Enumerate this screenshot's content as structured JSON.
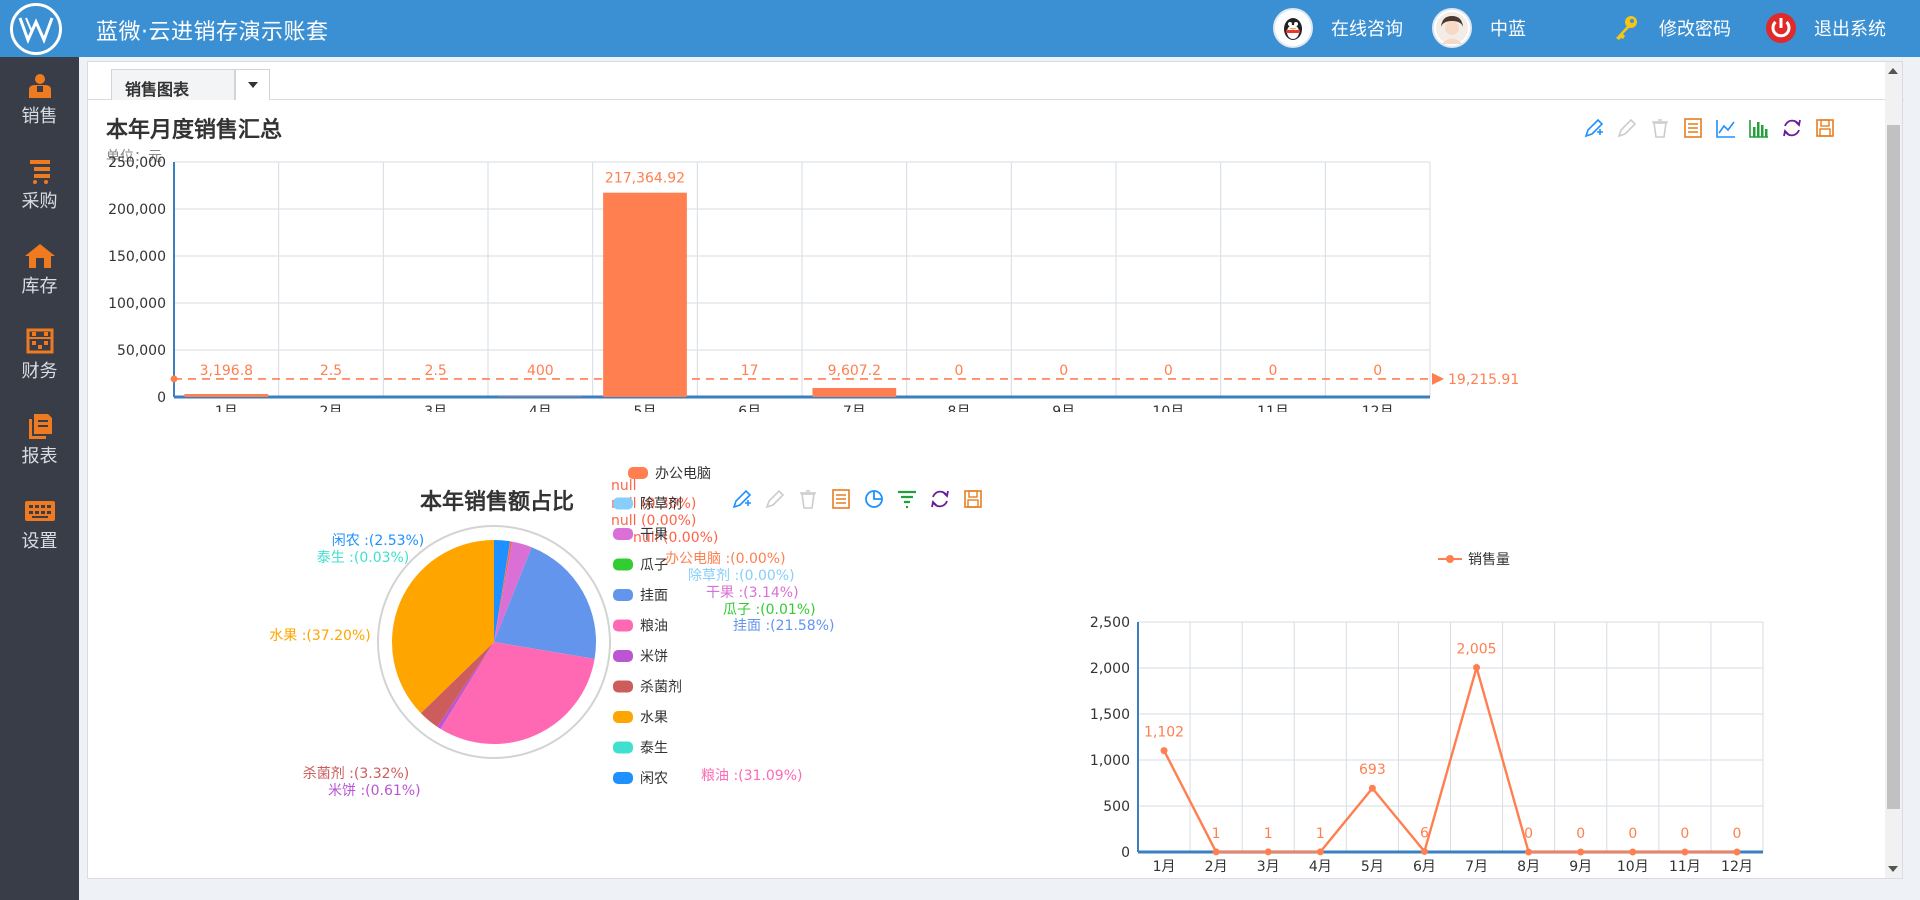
{
  "header": {
    "title": "蓝微·云进销存演示账套",
    "online_consult": "在线咨询",
    "user_name": "中蓝",
    "change_password": "修改密码",
    "logout": "退出系统",
    "bg_color": "#3b8fd3"
  },
  "sidebar": {
    "items": [
      {
        "label": "销售",
        "icon": "sales-person-icon"
      },
      {
        "label": "采购",
        "icon": "purchase-list-icon"
      },
      {
        "label": "库存",
        "icon": "warehouse-home-icon"
      },
      {
        "label": "财务",
        "icon": "abacus-icon"
      },
      {
        "label": "报表",
        "icon": "report-doc-icon"
      },
      {
        "label": "设置",
        "icon": "keyboard-settings-icon"
      }
    ],
    "icon_color": "#f07a1f"
  },
  "tabs": {
    "active": "销售图表"
  },
  "chart_data": [
    {
      "type": "bar",
      "title": "本年月度销售汇总",
      "unit_label": "单位：元",
      "categories": [
        "1月",
        "2月",
        "3月",
        "4月",
        "5月",
        "6月",
        "7月",
        "8月",
        "9月",
        "10月",
        "11月",
        "12月"
      ],
      "values": [
        3196.8,
        2.5,
        2.5,
        400,
        217364.92,
        17,
        9607.2,
        0,
        0,
        0,
        0,
        0
      ],
      "value_labels": [
        "3,196.8",
        "2.5",
        "2.5",
        "400",
        "217,364.92",
        "17",
        "9,607.2",
        "0",
        "0",
        "0",
        "0",
        "0"
      ],
      "y_ticks": [
        "0",
        "50,000",
        "100,000",
        "150,000",
        "200,000",
        "250,000"
      ],
      "ylim": [
        0,
        250000
      ],
      "average": 19215.91,
      "average_label": "19,215.91",
      "color": "#ff7f50",
      "grid": true
    },
    {
      "type": "pie",
      "title": "本年销售额占比",
      "legend": [
        "办公电脑",
        "除草剂",
        "干果",
        "瓜子",
        "挂面",
        "粮油",
        "米饼",
        "杀菌剂",
        "水果",
        "泰生",
        "闲农"
      ],
      "legend_overlap_labels": [
        "null",
        "null (0.30%)",
        "null (0.00%)",
        "null (0.00%)"
      ],
      "slices": [
        {
          "name": "闲农",
          "percent": 2.53,
          "label": "闲农 :(2.53%)",
          "color": "#1e90ff"
        },
        {
          "name": "泰生",
          "percent": 0.03,
          "label": "泰生 :(0.03%)",
          "color": "#40e0d0"
        },
        {
          "name": "null",
          "percent": 0.3,
          "label": "null (0.30%)",
          "color": "#ff6347"
        },
        {
          "name": "办公电脑",
          "percent": 0.0,
          "label": "办公电脑 :(0.00%)",
          "color": "#ff7f50"
        },
        {
          "name": "除草剂",
          "percent": 0.0,
          "label": "除草剂 :(0.00%)",
          "color": "#87cefa"
        },
        {
          "name": "干果",
          "percent": 3.14,
          "label": "干果 :(3.14%)",
          "color": "#da70d6"
        },
        {
          "name": "瓜子",
          "percent": 0.01,
          "label": "瓜子 :(0.01%)",
          "color": "#32cd32"
        },
        {
          "name": "挂面",
          "percent": 21.58,
          "label": "挂面 :(21.58%)",
          "color": "#6495ed"
        },
        {
          "name": "粮油",
          "percent": 31.09,
          "label": "粮油 :(31.09%)",
          "color": "#ff69b4"
        },
        {
          "name": "米饼",
          "percent": 0.61,
          "label": "米饼 :(0.61%)",
          "color": "#ba55d3"
        },
        {
          "name": "杀菌剂",
          "percent": 3.32,
          "label": "杀菌剂 :(3.32%)",
          "color": "#cd5c5c"
        },
        {
          "name": "水果",
          "percent": 37.2,
          "label": "水果 :(37.20%)",
          "color": "#ffa500"
        }
      ]
    },
    {
      "type": "line",
      "title": "",
      "legend": [
        "销售量"
      ],
      "categories": [
        "1月",
        "2月",
        "3月",
        "4月",
        "5月",
        "6月",
        "7月",
        "8月",
        "9月",
        "10月",
        "11月",
        "12月"
      ],
      "values": [
        1102,
        1,
        1,
        1,
        693,
        6,
        2005,
        0,
        0,
        0,
        0,
        0
      ],
      "value_labels": [
        "1,102",
        "1",
        "1",
        "1",
        "693",
        "6",
        "2,005",
        "0",
        "0",
        "0",
        "0",
        "0"
      ],
      "y_ticks": [
        "0",
        "500",
        "1,000",
        "1,500",
        "2,000",
        "2,500"
      ],
      "ylim": [
        0,
        2500
      ],
      "color": "#ff7f50",
      "grid": true
    }
  ]
}
